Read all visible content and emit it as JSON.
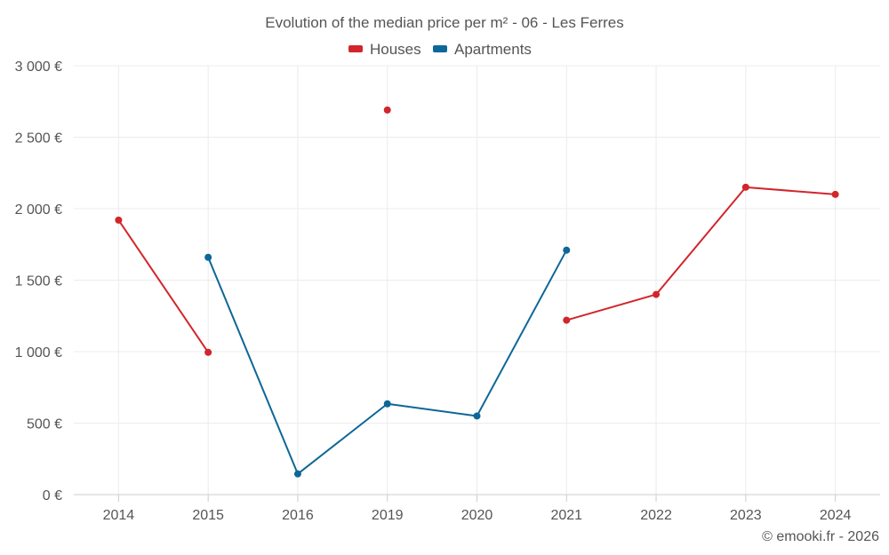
{
  "chart_data": {
    "type": "line",
    "title": "Evolution of the median price per m² - 06 - Les Ferres",
    "categories": [
      "2014",
      "2015",
      "2016",
      "2019",
      "2020",
      "2021",
      "2022",
      "2023",
      "2024"
    ],
    "ylim": [
      0,
      3000
    ],
    "yticks": [
      0,
      500,
      1000,
      1500,
      2000,
      2500,
      3000
    ],
    "ytick_labels": [
      "0 €",
      "500 €",
      "1 000 €",
      "1 500 €",
      "2 000 €",
      "2 500 €",
      "3 000 €"
    ],
    "grid": true,
    "legend_position": "top-center",
    "series": [
      {
        "name": "Houses",
        "color": "#d1262b",
        "values": [
          1920,
          995,
          null,
          2690,
          null,
          1220,
          1400,
          2150,
          2100
        ]
      },
      {
        "name": "Apartments",
        "color": "#0d6797",
        "values": [
          null,
          1660,
          145,
          635,
          550,
          1710,
          null,
          null,
          null
        ]
      }
    ],
    "credit": "© emooki.fr - 2026"
  }
}
